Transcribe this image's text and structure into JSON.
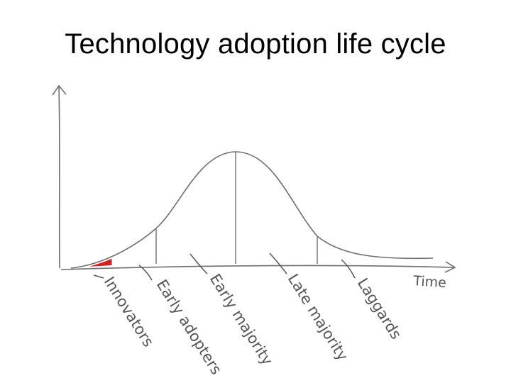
{
  "slide": {
    "title": "Technology adoption life cycle"
  },
  "diagram": {
    "x_axis_label": "Time",
    "segments": [
      {
        "label": "Innovators",
        "highlighted": true
      },
      {
        "label": "Early adopters",
        "highlighted": false
      },
      {
        "label": "Early majority",
        "highlighted": false
      },
      {
        "label": "Late majority",
        "highlighted": false
      },
      {
        "label": "Laggards",
        "highlighted": false
      }
    ],
    "colors": {
      "ink": "#6e6e6e",
      "innovators_fill": "#d81c1c",
      "title_text": "#000000"
    }
  }
}
